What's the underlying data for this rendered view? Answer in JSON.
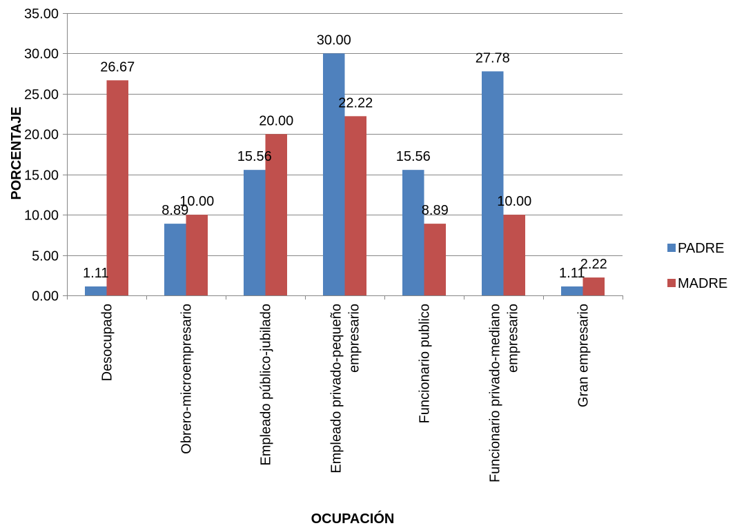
{
  "chart_data": {
    "type": "bar",
    "categories": [
      [
        "Desocupado"
      ],
      [
        "Obrero-microempresario"
      ],
      [
        "Empleado público-jubilado"
      ],
      [
        "Empleado privado-pequeño",
        "empresario"
      ],
      [
        "Funcionario publico"
      ],
      [
        "Funcionario privado-mediano",
        "empresario"
      ],
      [
        "Gran empresario"
      ]
    ],
    "series": [
      {
        "name": "PADRE",
        "color": "#4F81BD",
        "values": [
          1.11,
          8.89,
          15.56,
          30.0,
          15.56,
          27.78,
          1.11
        ]
      },
      {
        "name": "MADRE",
        "color": "#C0504D",
        "values": [
          26.67,
          10.0,
          20.0,
          22.22,
          8.89,
          10.0,
          2.22
        ]
      }
    ],
    "xlabel": "OCUPACIÓN",
    "ylabel": "PORCENTAJE",
    "ylim": [
      0,
      35
    ],
    "ytick_step": 5,
    "value_decimals": 2,
    "grid": true,
    "legend_position": "right"
  }
}
